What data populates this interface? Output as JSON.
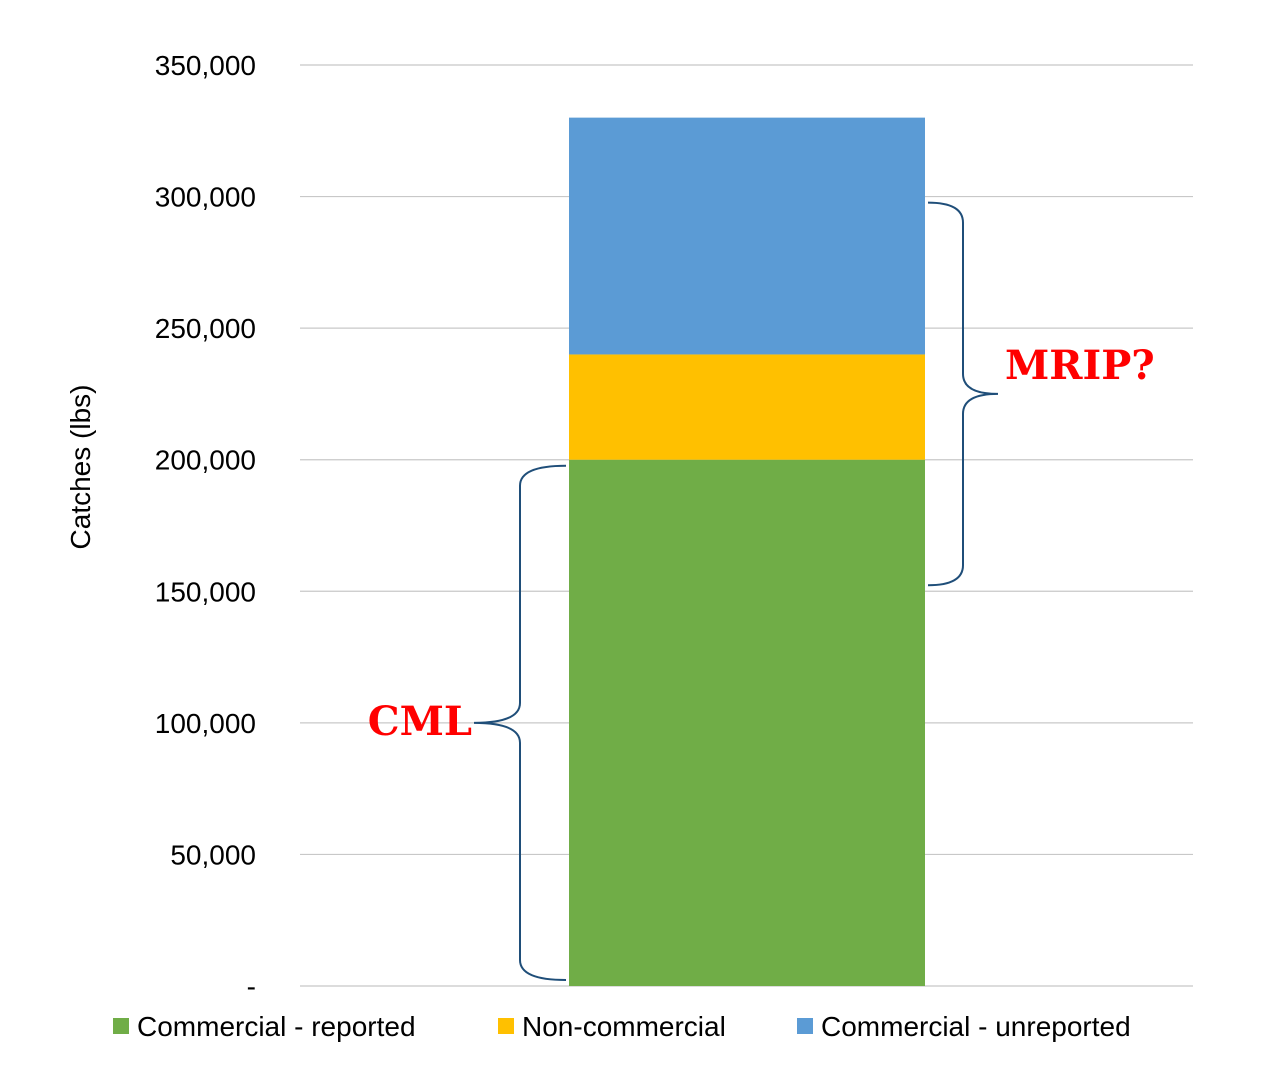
{
  "chart_data": {
    "type": "bar",
    "stacked": true,
    "categories": [
      ""
    ],
    "series": [
      {
        "name": "Commercial - reported",
        "values": [
          200000
        ],
        "color": "#70ad47"
      },
      {
        "name": "Non-commercial",
        "values": [
          40000
        ],
        "color": "#ffc000"
      },
      {
        "name": "Commercial - unreported",
        "values": [
          90000
        ],
        "color": "#5b9bd5"
      }
    ],
    "ylabel": "Catches (lbs)",
    "xlabel": "",
    "title": "",
    "ylim": [
      0,
      350000
    ],
    "yticks": [
      {
        "value": 0,
        "label": "-"
      },
      {
        "value": 50000,
        "label": "50,000"
      },
      {
        "value": 100000,
        "label": "100,000"
      },
      {
        "value": 150000,
        "label": "150,000"
      },
      {
        "value": 200000,
        "label": "200,000"
      },
      {
        "value": 250000,
        "label": "250,000"
      },
      {
        "value": 300000,
        "label": "300,000"
      },
      {
        "value": 350000,
        "label": "350,000"
      }
    ],
    "grid": true,
    "legend_position": "bottom",
    "annotations": [
      {
        "label": "CML",
        "from": 0,
        "to": 200000,
        "side": "left",
        "color": "#ff0000"
      },
      {
        "label": "MRIP?",
        "from": 150000,
        "to": 300000,
        "side": "right",
        "color": "#ff0000"
      }
    ]
  }
}
